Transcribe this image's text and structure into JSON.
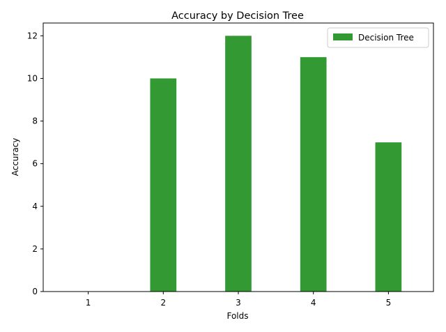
{
  "chart_data": {
    "type": "bar",
    "title": "Accuracy by Decision Tree",
    "xlabel": "Folds",
    "ylabel": "Accuracy",
    "categories": [
      "1",
      "2",
      "3",
      "4",
      "5"
    ],
    "series": [
      {
        "name": "Decision Tree",
        "values": [
          0,
          10,
          12,
          11,
          7
        ],
        "color": "#339933"
      }
    ],
    "ylim": [
      0,
      12.6
    ],
    "yticks": [
      "0",
      "2",
      "4",
      "6",
      "8",
      "10",
      "12"
    ],
    "grid": false,
    "legend_position": "top-right"
  }
}
